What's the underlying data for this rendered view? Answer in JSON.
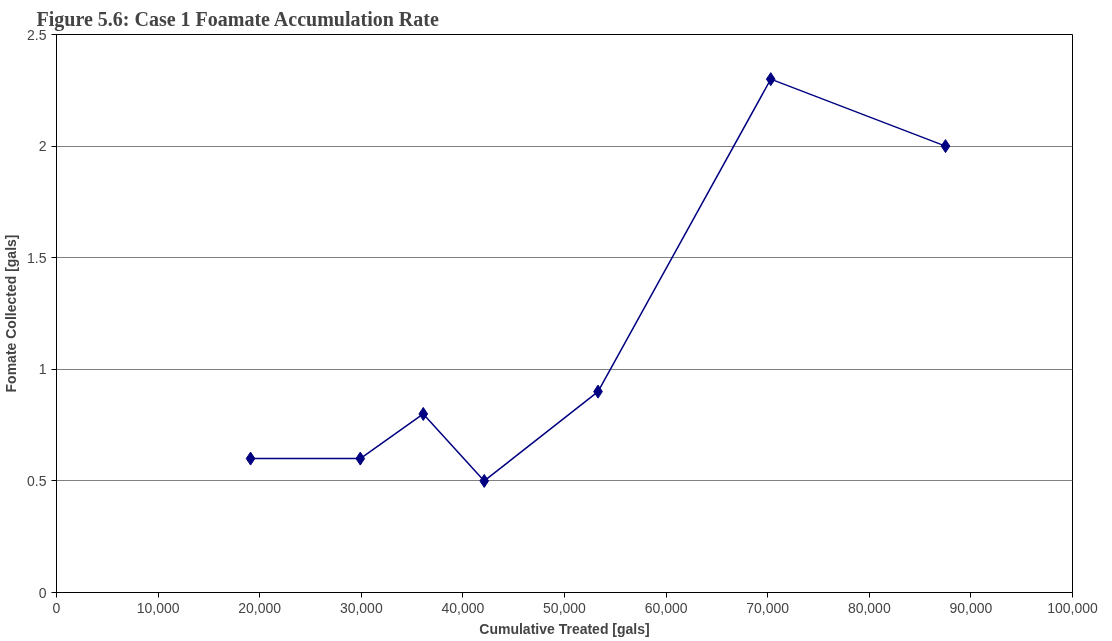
{
  "chart_data": {
    "type": "line",
    "title": "Figure 5.6: Case 1 Foamate Accumulation Rate",
    "xlabel": "Cumulative Treated [gals]",
    "ylabel": "Fomate Collected [gals]",
    "x": [
      19100,
      29900,
      36100,
      42100,
      53300,
      70300,
      87500
    ],
    "series": [
      {
        "color": "#000080",
        "values": [
          0.6,
          0.6,
          0.8,
          0.5,
          0.9,
          2.3,
          2.0
        ]
      }
    ],
    "xlim": [
      0,
      100000
    ],
    "xticks": [
      {
        "value": 0,
        "label": "0"
      },
      {
        "value": 10000,
        "label": "10,000"
      },
      {
        "value": 20000,
        "label": "20,000"
      },
      {
        "value": 30000,
        "label": "30,000"
      },
      {
        "value": 40000,
        "label": "40,000"
      },
      {
        "value": 50000,
        "label": "50,000"
      },
      {
        "value": 60000,
        "label": "60,000"
      },
      {
        "value": 70000,
        "label": "70,000"
      },
      {
        "value": 80000,
        "label": "80,000"
      },
      {
        "value": 90000,
        "label": "90,000"
      },
      {
        "value": 100000,
        "label": "100,000"
      }
    ],
    "ylim": [
      0,
      2.5
    ],
    "yticks": [
      0,
      0.5,
      1,
      1.5,
      2,
      2.5
    ],
    "grid": "y",
    "marker": "diamond",
    "line_style": "solid"
  }
}
